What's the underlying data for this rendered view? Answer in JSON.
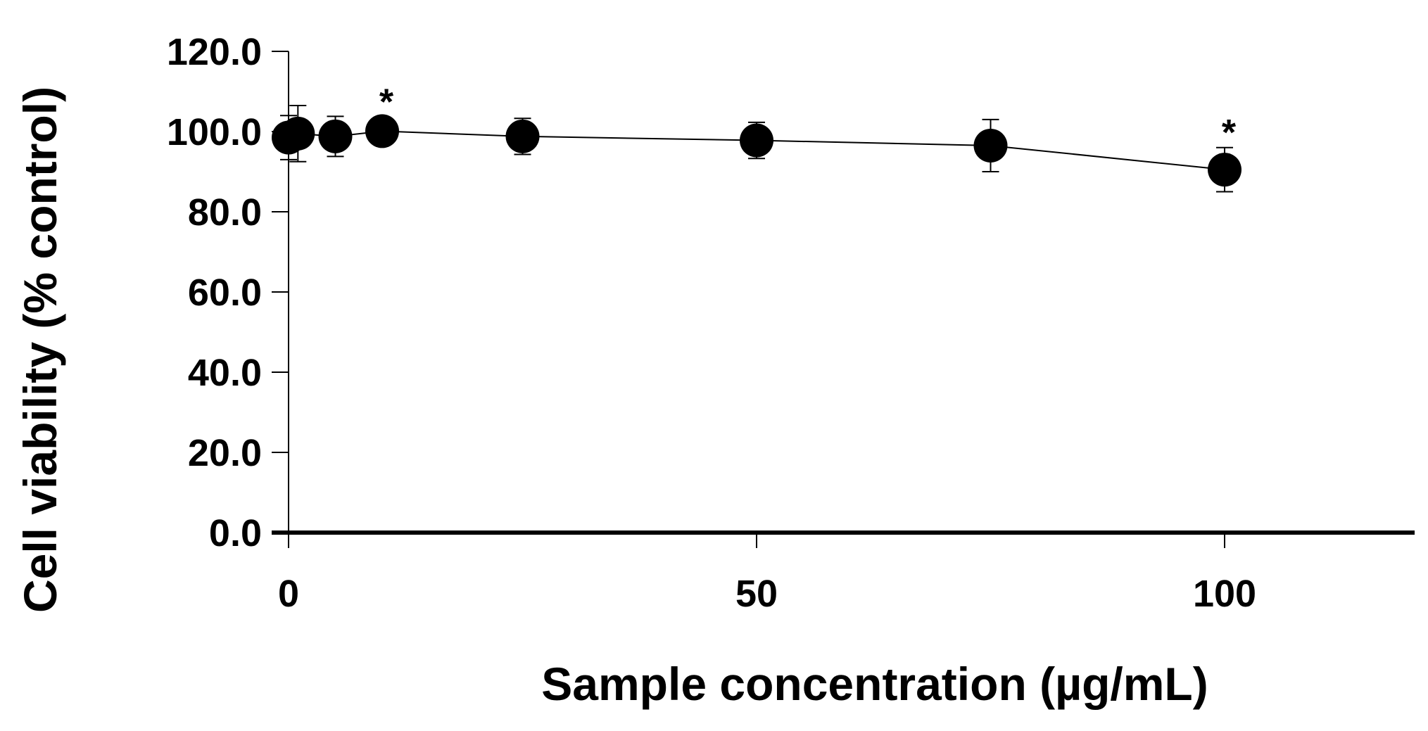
{
  "chart_data": {
    "type": "scatter",
    "title": "",
    "xlabel": "Sample concentration (µg/mL)",
    "ylabel": "Cell viability (% control)",
    "xlim": [
      0,
      120
    ],
    "ylim": [
      0,
      120
    ],
    "x_ticks": [
      0,
      50,
      100
    ],
    "x_tick_labels": [
      "0",
      "50",
      "100"
    ],
    "y_ticks": [
      0,
      20,
      40,
      60,
      80,
      100,
      120
    ],
    "y_tick_labels": [
      "0.0",
      "20.0",
      "40.0",
      "60.0",
      "80.0",
      "100.0",
      "120.0"
    ],
    "grid": false,
    "legend": "none",
    "connected": true,
    "series": [
      {
        "x": [
          0,
          1,
          5,
          10,
          25,
          50,
          75,
          100
        ],
        "y": [
          98.5,
          99.5,
          98.8,
          100.1,
          98.8,
          97.8,
          96.5,
          90.5
        ],
        "error": [
          5.5,
          7.0,
          5.0,
          3.5,
          4.5,
          4.5,
          6.5,
          5.5
        ],
        "significance": [
          "",
          "",
          "",
          "*",
          "",
          "",
          "",
          "*"
        ]
      }
    ]
  }
}
